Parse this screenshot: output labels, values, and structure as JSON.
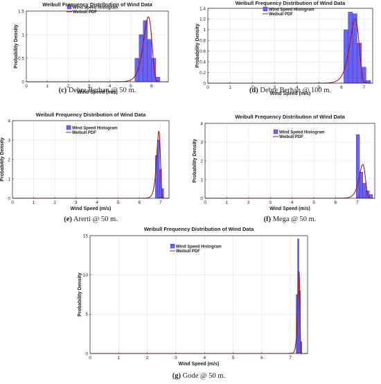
{
  "colors": {
    "bar": "#6b63f2",
    "bar_edge": "#2b2bb8",
    "pdf": "#a3151b",
    "grid": "#e3e3e3"
  },
  "chart_data": [
    {
      "type": "bar",
      "title": "Weibull Frequency Distribution of Wind Data",
      "xlabel": "Wind Speed (m/s)",
      "ylabel": "Probability Density",
      "xlim": [
        0,
        6.8
      ],
      "ylim": [
        0,
        1.5
      ],
      "xticks": [
        0,
        1,
        2,
        3,
        4,
        5,
        6
      ],
      "yticks": [
        0,
        0.5,
        1,
        1.5
      ],
      "grid": true,
      "legend": "top-right",
      "series": [
        {
          "name": "Wind Speed Histogram",
          "bins": [
            [
              5.2,
              5.4,
              0.5
            ],
            [
              5.4,
              5.6,
              1.0
            ],
            [
              5.6,
              5.8,
              1.3
            ],
            [
              5.8,
              6.0,
              0.9
            ],
            [
              6.0,
              6.2,
              0.5
            ],
            [
              6.2,
              6.4,
              0.1
            ]
          ]
        },
        {
          "name": "Weibull PDF",
          "shape": 30,
          "scale": 5.85,
          "peak": 1.38
        }
      ],
      "caption_label": "(c)",
      "caption_text": "Debre Berhan @ 50 m."
    },
    {
      "type": "bar",
      "title": "Weibull Frequency Distribution of Wind Data",
      "xlabel": "Wind Speed (m/s)",
      "ylabel": "Probability Density",
      "xlim": [
        0,
        7.4
      ],
      "ylim": [
        0,
        1.4
      ],
      "xticks": [
        0,
        1,
        2,
        3,
        4,
        5,
        6,
        7
      ],
      "yticks": [
        0,
        0.2,
        0.4,
        0.6,
        0.8,
        1,
        1.2,
        1.4
      ],
      "grid": true,
      "legend": "top-right",
      "series": [
        {
          "name": "Wind Speed Histogram",
          "bins": [
            [
              6.1,
              6.3,
              1.0
            ],
            [
              6.3,
              6.5,
              1.33
            ],
            [
              6.5,
              6.7,
              1.3
            ],
            [
              6.7,
              6.9,
              0.75
            ],
            [
              6.9,
              7.1,
              0.3
            ],
            [
              7.1,
              7.3,
              0.05
            ]
          ]
        },
        {
          "name": "Weibull PDF",
          "shape": 33,
          "scale": 6.62,
          "peak": 1.2
        }
      ],
      "caption_label": "(d)",
      "caption_text": "Debre Berhan @ 100 m."
    },
    {
      "type": "bar",
      "title": "Weibull Frequency Distribution of Wind Data",
      "xlabel": "Wind Speed (m/s)",
      "ylabel": "Probability Density",
      "xlim": [
        0,
        7.4
      ],
      "ylim": [
        0,
        4
      ],
      "xticks": [
        0,
        1,
        2,
        3,
        4,
        5,
        6,
        7
      ],
      "yticks": [
        0,
        1,
        2,
        3,
        4
      ],
      "grid": true,
      "legend": "top-right",
      "series": [
        {
          "name": "Wind Speed Histogram",
          "bins": [
            [
              6.75,
              6.85,
              2.2
            ],
            [
              6.85,
              6.95,
              3.0
            ],
            [
              6.95,
              7.05,
              1.5
            ],
            [
              7.05,
              7.15,
              0.5
            ]
          ]
        },
        {
          "name": "Weibull PDF",
          "shape": 80,
          "scale": 6.92,
          "peak": 3.45
        }
      ],
      "caption_label": "(e)",
      "caption_text": "Arerti @ 50 m."
    },
    {
      "type": "bar",
      "title": "Weibull Frequency Distribution of Wind Data",
      "xlabel": "Wind Speed (m/s)",
      "ylabel": "Probability Density",
      "xlim": [
        0,
        7.8
      ],
      "ylim": [
        0,
        4
      ],
      "xticks": [
        0,
        1,
        2,
        3,
        4,
        5,
        6,
        7
      ],
      "yticks": [
        0,
        1,
        2,
        3,
        4
      ],
      "grid": true,
      "legend": "top-left",
      "series": [
        {
          "name": "Wind Speed Histogram",
          "bins": [
            [
              6.95,
              7.1,
              3.4
            ],
            [
              7.1,
              7.25,
              1.4
            ],
            [
              7.25,
              7.4,
              0.8
            ],
            [
              7.4,
              7.55,
              0.4
            ],
            [
              7.55,
              7.7,
              0.2
            ]
          ]
        },
        {
          "name": "Weibull PDF",
          "shape": 52,
          "scale": 7.25,
          "peak": 1.8
        }
      ],
      "caption_label": "(f)",
      "caption_text": "Mega @ 50 m."
    },
    {
      "type": "bar",
      "title": "Weibull Frequency Distribution of Wind Data",
      "xlabel": "Wind Speed (m/s)",
      "ylabel": "Probability Density",
      "xlim": [
        0,
        7.6
      ],
      "ylim": [
        0,
        15
      ],
      "xticks": [
        0,
        1,
        2,
        3,
        4,
        5,
        6,
        7
      ],
      "yticks": [
        0,
        5,
        10,
        15
      ],
      "grid": true,
      "legend": "top-center",
      "series": [
        {
          "name": "Wind Speed Histogram",
          "bins": [
            [
              7.2,
              7.25,
              7.5
            ],
            [
              7.25,
              7.3,
              14.6
            ],
            [
              7.3,
              7.35,
              8.0
            ],
            [
              7.35,
              7.4,
              1.5
            ]
          ]
        },
        {
          "name": "Weibull PDF",
          "shape": 200,
          "scale": 7.3,
          "peak": 10.5
        }
      ],
      "caption_label": "(g)",
      "caption_text": "Gode @ 50 m."
    }
  ]
}
